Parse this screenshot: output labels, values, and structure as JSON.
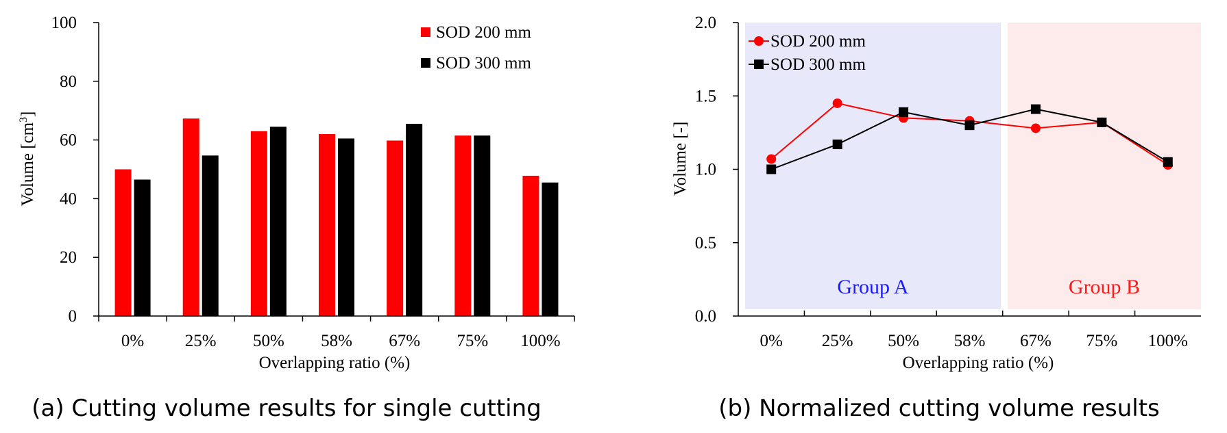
{
  "charts": [
    {
      "type": "bar",
      "caption": "(a) Cutting volume results for single cutting",
      "categories": [
        "0%",
        "25%",
        "50%",
        "58%",
        "67%",
        "75%",
        "100%"
      ],
      "xlabel": "Overlapping ratio (%)",
      "ylabel_main": "Volume [cm",
      "ylabel_sup": "3",
      "ylabel_end": "]",
      "ylim": [
        0,
        100
      ],
      "yticks": [
        "0",
        "20",
        "40",
        "60",
        "80",
        "100"
      ],
      "series": [
        {
          "name": "SOD 200 mm",
          "color": "#ff0000",
          "values": [
            50,
            67.3,
            63,
            62,
            59.8,
            61.5,
            47.8
          ]
        },
        {
          "name": "SOD 300 mm",
          "color": "#000000",
          "values": [
            46.5,
            54.7,
            64.5,
            60.5,
            65.5,
            61.5,
            45.5
          ]
        }
      ]
    },
    {
      "type": "line",
      "caption": "(b) Normalized cutting volume results",
      "categories": [
        "0%",
        "25%",
        "50%",
        "58%",
        "67%",
        "75%",
        "100%"
      ],
      "xlabel": "Overlapping ratio (%)",
      "ylabel": "Volume [-]",
      "ylim": [
        0,
        2.0
      ],
      "yticks": [
        "0.0",
        "0.5",
        "1.0",
        "1.5",
        "2.0"
      ],
      "groups": [
        {
          "label": "Group A",
          "text_color": "#1a1aff",
          "fill": "#e8e8fb",
          "from": 0,
          "to": 3
        },
        {
          "label": "Group B",
          "text_color": "#ff1a1a",
          "fill": "#fdeaea",
          "from": 4,
          "to": 6
        }
      ],
      "series": [
        {
          "name": "SOD 200 mm",
          "color": "#ff0000",
          "marker": "circle",
          "values": [
            1.07,
            1.45,
            1.35,
            1.33,
            1.28,
            1.32,
            1.03
          ]
        },
        {
          "name": "SOD 300 mm",
          "color": "#000000",
          "marker": "square",
          "values": [
            1.0,
            1.17,
            1.39,
            1.3,
            1.41,
            1.32,
            1.05
          ]
        }
      ]
    }
  ]
}
